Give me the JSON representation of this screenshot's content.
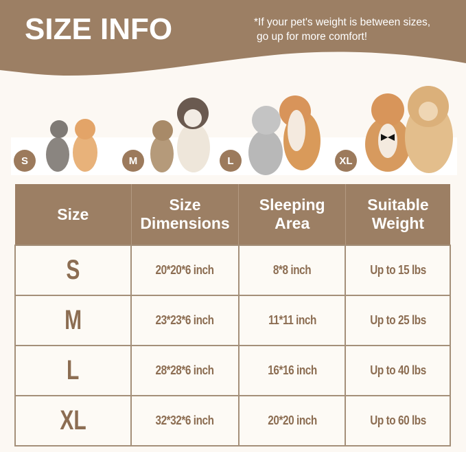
{
  "header": {
    "title": "SIZE INFO",
    "note_line1": "*If your pet's weight is between sizes,",
    "note_line2": "go up for more comfort!"
  },
  "colors": {
    "brand": "#9c7f64",
    "background": "#fcf8f3",
    "text_brown": "#8c6d52"
  },
  "size_badges": [
    "S",
    "M",
    "L",
    "XL"
  ],
  "table": {
    "headers": [
      [
        "Size"
      ],
      [
        "Size",
        "Dimensions"
      ],
      [
        "Sleeping",
        "Area"
      ],
      [
        "Suitable",
        "Weight"
      ]
    ],
    "rows": [
      {
        "size": "S",
        "dimensions": "20*20*6 inch",
        "area": "8*8 inch",
        "weight": "Up to 15 lbs"
      },
      {
        "size": "M",
        "dimensions": "23*23*6 inch",
        "area": "11*11 inch",
        "weight": "Up to 25 lbs"
      },
      {
        "size": "L",
        "dimensions": "28*28*6 inch",
        "area": "16*16 inch",
        "weight": "Up to 40 lbs"
      },
      {
        "size": "XL",
        "dimensions": "32*32*6 inch",
        "area": "20*20 inch",
        "weight": "Up to 60 lbs"
      }
    ]
  }
}
